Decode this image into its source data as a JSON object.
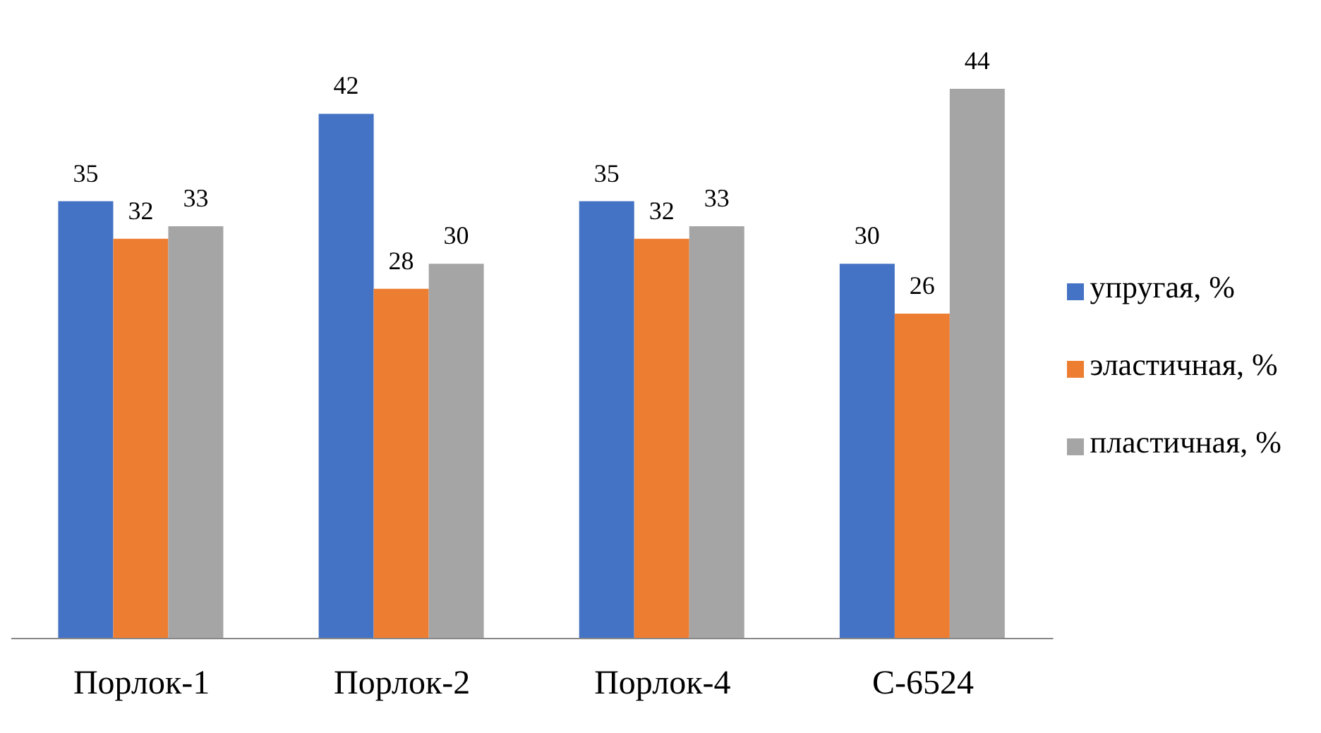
{
  "chart_data": {
    "type": "bar",
    "categories": [
      "Порлок-1",
      "Порлок-2",
      "Порлок-4",
      "С-6524"
    ],
    "series": [
      {
        "name": "упругая, %",
        "color": "#4472c4",
        "values": [
          35,
          42,
          35,
          30
        ]
      },
      {
        "name": "эластичная, %",
        "color": "#ed7d31",
        "values": [
          32,
          28,
          32,
          26
        ]
      },
      {
        "name": "пластичная, %",
        "color": "#a5a5a5",
        "values": [
          33,
          30,
          33,
          44
        ]
      }
    ],
    "data_labels": true,
    "legend": "right",
    "grid": false
  }
}
